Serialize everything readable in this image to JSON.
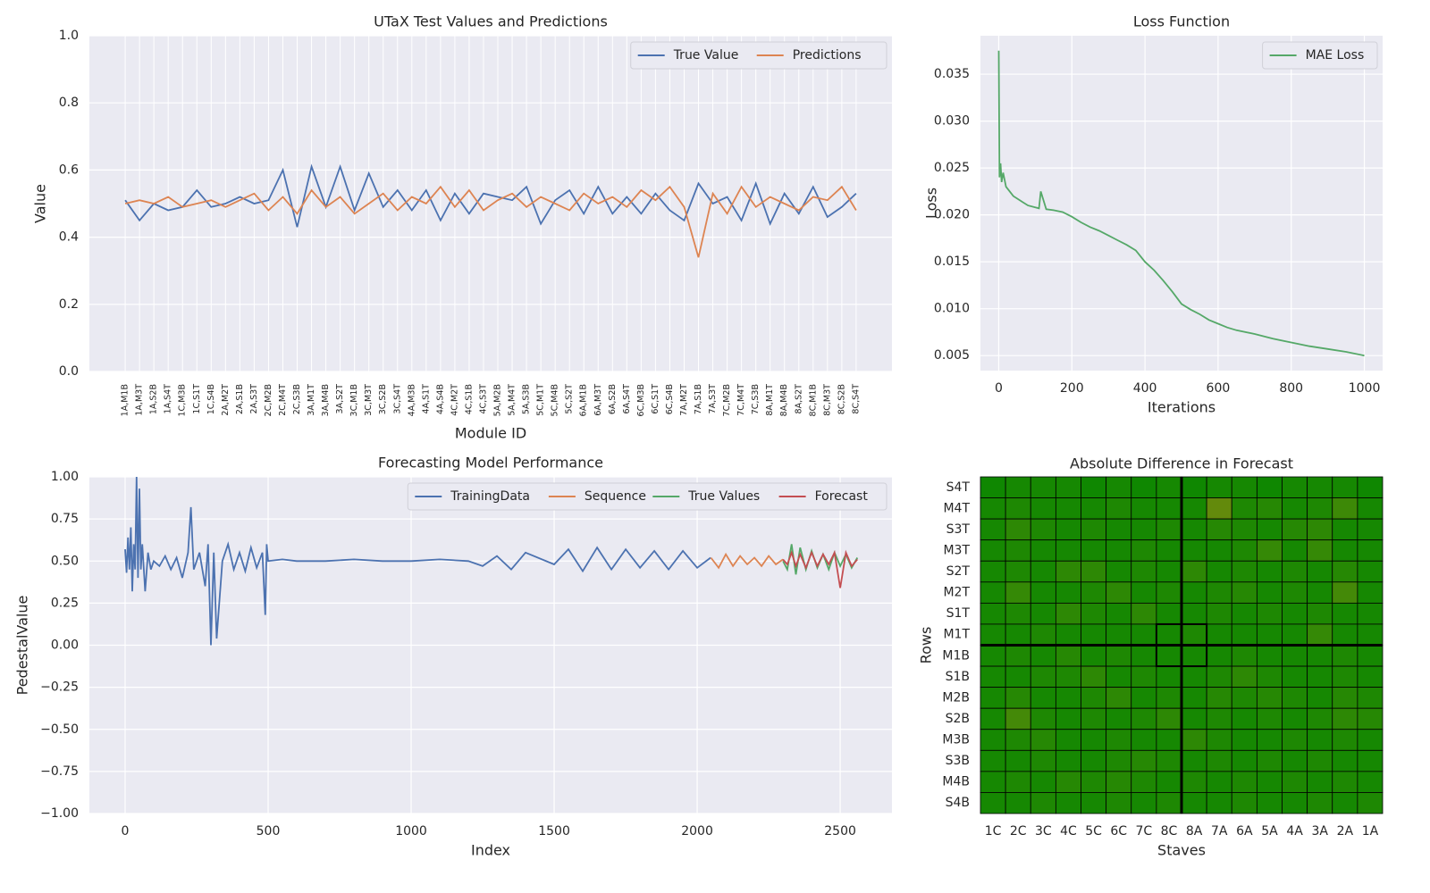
{
  "chart_data": [
    {
      "type": "line",
      "title": "UTaX Test Values and Predictions",
      "xlabel": "Module ID",
      "ylabel": "Value",
      "categories": [
        "1A,M1B",
        "1A,M3T",
        "1A,S2B",
        "1A,S4T",
        "1C,M3B",
        "1C,S1T",
        "1C,S4B",
        "2A,M2T",
        "2A,S1B",
        "2A,S3T",
        "2C,M2B",
        "2C,M4T",
        "2C,S3B",
        "3A,M1T",
        "3A,M4B",
        "3A,S2T",
        "3C,M1B",
        "3C,M3T",
        "3C,S2B",
        "3C,S4T",
        "4A,M3B",
        "4A,S1T",
        "4A,S4B",
        "4C,M2T",
        "4C,S1B",
        "4C,S3T",
        "5A,M2B",
        "5A,M4T",
        "5A,S3B",
        "5C,M1T",
        "5C,M4B",
        "5C,S2T",
        "6A,M1B",
        "6A,M3T",
        "6A,S2B",
        "6A,S4T",
        "6C,M3B",
        "6C,S1T",
        "6C,S4B",
        "7A,M2T",
        "7A,S1B",
        "7A,S3T",
        "7C,M2B",
        "7C,M4T",
        "7C,S3B",
        "8A,M1T",
        "8A,M4B",
        "8A,S2T",
        "8C,M1B",
        "8C,M3T",
        "8C,S2B",
        "8C,S4T"
      ],
      "series": [
        {
          "name": "True Value",
          "color": "#4c72b0",
          "values": [
            0.51,
            0.45,
            0.5,
            0.48,
            0.49,
            0.54,
            0.49,
            0.5,
            0.52,
            0.5,
            0.51,
            0.6,
            0.43,
            0.61,
            0.49,
            0.61,
            0.48,
            0.59,
            0.49,
            0.54,
            0.48,
            0.54,
            0.45,
            0.53,
            0.47,
            0.53,
            0.52,
            0.51,
            0.55,
            0.44,
            0.51,
            0.54,
            0.47,
            0.55,
            0.47,
            0.52,
            0.47,
            0.53,
            0.48,
            0.45,
            0.56,
            0.5,
            0.52,
            0.45,
            0.56,
            0.44,
            0.53,
            0.47,
            0.55,
            0.46,
            0.49,
            0.53
          ]
        },
        {
          "name": "Predictions",
          "color": "#dd8452",
          "values": [
            0.5,
            0.51,
            0.5,
            0.52,
            0.49,
            0.5,
            0.51,
            0.49,
            0.51,
            0.53,
            0.48,
            0.52,
            0.47,
            0.54,
            0.49,
            0.52,
            0.47,
            0.5,
            0.53,
            0.48,
            0.52,
            0.5,
            0.55,
            0.49,
            0.54,
            0.48,
            0.51,
            0.53,
            0.49,
            0.52,
            0.5,
            0.48,
            0.53,
            0.5,
            0.52,
            0.49,
            0.54,
            0.51,
            0.55,
            0.49,
            0.34,
            0.53,
            0.47,
            0.55,
            0.49,
            0.52,
            0.5,
            0.48,
            0.52,
            0.51,
            0.55,
            0.48
          ]
        }
      ],
      "ylim": [
        0,
        1
      ],
      "yticks": [
        {
          "value": 0,
          "label": "0.0"
        },
        0.2,
        0.4,
        0.6,
        0.8,
        {
          "value": 1,
          "label": "1.0"
        }
      ],
      "grid": true,
      "legend": "upper right",
      "legend_ncol": 2
    },
    {
      "type": "line",
      "title": "Loss Function",
      "xlabel": "Iterations",
      "ylabel": "Loss",
      "series": [
        {
          "name": "MAE Loss",
          "color": "#55a868",
          "x": [
            0,
            2,
            5,
            8,
            12,
            20,
            40,
            60,
            80,
            100,
            110,
            115,
            130,
            150,
            175,
            200,
            225,
            250,
            275,
            300,
            325,
            350,
            375,
            400,
            425,
            450,
            475,
            500,
            525,
            550,
            575,
            600,
            625,
            650,
            700,
            750,
            800,
            850,
            900,
            950,
            1000
          ],
          "values": [
            0.0375,
            0.024,
            0.0255,
            0.0235,
            0.0245,
            0.023,
            0.022,
            0.0215,
            0.021,
            0.0208,
            0.0207,
            0.0225,
            0.0206,
            0.0205,
            0.0203,
            0.0198,
            0.0192,
            0.0187,
            0.0183,
            0.0178,
            0.0173,
            0.0168,
            0.0162,
            0.015,
            0.0141,
            0.013,
            0.0118,
            0.0105,
            0.0099,
            0.0094,
            0.0088,
            0.0084,
            0.008,
            0.0077,
            0.0073,
            0.0068,
            0.0064,
            0.006,
            0.0057,
            0.0054,
            0.005
          ]
        }
      ],
      "xlim": [
        -50,
        1050
      ],
      "xticks": [
        0,
        200,
        400,
        600,
        800,
        1000
      ],
      "ylim": [
        0.0034,
        0.0391
      ],
      "yticks": [
        0.005,
        {
          "value": 0.01,
          "label": "0.010"
        },
        0.015,
        {
          "value": 0.02,
          "label": "0.020"
        },
        0.025,
        {
          "value": 0.03,
          "label": "0.030"
        },
        0.035
      ],
      "grid": true,
      "legend": "upper right",
      "legend_ncol": 1
    },
    {
      "type": "line",
      "title": "Forecasting Model Performance",
      "xlabel": "Index",
      "ylabel": "PedestalValue",
      "series": [
        {
          "name": "TrainingData",
          "color": "#4c72b0",
          "x": [
            0,
            5,
            10,
            15,
            20,
            25,
            30,
            35,
            40,
            45,
            50,
            55,
            60,
            70,
            80,
            90,
            100,
            120,
            140,
            160,
            180,
            200,
            220,
            230,
            240,
            260,
            280,
            290,
            300,
            310,
            320,
            340,
            360,
            380,
            400,
            420,
            440,
            460,
            480,
            490,
            495,
            500,
            550,
            600,
            700,
            800,
            900,
            1000,
            1100,
            1200,
            1250,
            1300,
            1350,
            1400,
            1500,
            1550,
            1600,
            1650,
            1700,
            1750,
            1800,
            1850,
            1900,
            1950,
            2000,
            2047
          ],
          "values": [
            0.57,
            0.43,
            0.64,
            0.45,
            0.7,
            0.32,
            0.6,
            0.45,
            1.0,
            0.4,
            0.93,
            0.45,
            0.6,
            0.32,
            0.55,
            0.45,
            0.5,
            0.47,
            0.53,
            0.45,
            0.52,
            0.4,
            0.55,
            0.82,
            0.45,
            0.55,
            0.35,
            0.6,
            0.0,
            0.55,
            0.04,
            0.5,
            0.6,
            0.45,
            0.55,
            0.44,
            0.58,
            0.46,
            0.55,
            0.18,
            0.6,
            0.5,
            0.51,
            0.5,
            0.5,
            0.51,
            0.5,
            0.5,
            0.51,
            0.5,
            0.47,
            0.53,
            0.45,
            0.55,
            0.48,
            0.57,
            0.44,
            0.58,
            0.45,
            0.57,
            0.46,
            0.56,
            0.45,
            0.56,
            0.46,
            0.52
          ]
        },
        {
          "name": "Sequence",
          "color": "#dd8452",
          "x": [
            2048,
            2075,
            2100,
            2125,
            2150,
            2175,
            2200,
            2225,
            2250,
            2275,
            2300
          ],
          "values": [
            0.52,
            0.46,
            0.54,
            0.47,
            0.53,
            0.48,
            0.52,
            0.47,
            0.53,
            0.48,
            0.51
          ]
        },
        {
          "name": "True Values",
          "color": "#55a868",
          "x": [
            2300,
            2315,
            2330,
            2345,
            2360,
            2380,
            2400,
            2420,
            2440,
            2460,
            2480,
            2500,
            2520,
            2540,
            2560
          ],
          "values": [
            0.5,
            0.45,
            0.6,
            0.42,
            0.58,
            0.45,
            0.56,
            0.46,
            0.54,
            0.45,
            0.55,
            0.47,
            0.54,
            0.46,
            0.52
          ]
        },
        {
          "name": "Forecast",
          "color": "#c44e52",
          "x": [
            2300,
            2315,
            2330,
            2345,
            2360,
            2380,
            2400,
            2420,
            2440,
            2460,
            2480,
            2500,
            2520,
            2540,
            2560
          ],
          "values": [
            0.51,
            0.48,
            0.55,
            0.47,
            0.54,
            0.46,
            0.55,
            0.47,
            0.54,
            0.48,
            0.55,
            0.34,
            0.55,
            0.47,
            0.51
          ]
        }
      ],
      "xlim": [
        -125,
        2681
      ],
      "xticks": [
        0,
        500,
        1000,
        1500,
        2000,
        2500
      ],
      "ylim": [
        -1,
        1
      ],
      "yticks": [
        {
          "value": -1,
          "label": "−1.00"
        },
        {
          "value": -0.75,
          "label": "−0.75"
        },
        {
          "value": -0.5,
          "label": "−0.50"
        },
        {
          "value": -0.25,
          "label": "−0.25"
        },
        {
          "value": 0,
          "label": "0.00"
        },
        {
          "value": 0.25,
          "label": "0.25"
        },
        {
          "value": 0.5,
          "label": "0.50"
        },
        {
          "value": 0.75,
          "label": "0.75"
        },
        {
          "value": 1,
          "label": "1.00"
        }
      ],
      "grid": true,
      "legend": "upper right",
      "legend_ncol": 4
    },
    {
      "type": "heatmap",
      "title": "Absolute Difference in Forecast",
      "xlabel": "Staves",
      "ylabel": "Rows",
      "columns": [
        "1C",
        "2C",
        "3C",
        "4C",
        "5C",
        "6C",
        "7C",
        "8C",
        "8A",
        "7A",
        "6A",
        "5A",
        "4A",
        "3A",
        "2A",
        "1A"
      ],
      "rows": [
        "S4T",
        "M4T",
        "S3T",
        "M3T",
        "S2T",
        "M2T",
        "S1T",
        "M1T",
        "M1B",
        "S1B",
        "M2B",
        "S2B",
        "M3B",
        "S3B",
        "M4B",
        "S4B"
      ],
      "z": [
        [
          0.05,
          0.1,
          0.1,
          0.1,
          0.05,
          0.1,
          0.05,
          0.1,
          0.05,
          0.1,
          0.1,
          0.05,
          0.1,
          0.1,
          0.1,
          0.05
        ],
        [
          0.1,
          0.15,
          0.1,
          0.1,
          0.1,
          0.15,
          0.1,
          0.1,
          0.1,
          0.6,
          0.15,
          0.2,
          0.1,
          0.15,
          0.35,
          0.1
        ],
        [
          0.1,
          0.25,
          0.15,
          0.1,
          0.15,
          0.1,
          0.1,
          0.15,
          0.1,
          0.2,
          0.15,
          0.1,
          0.2,
          0.25,
          0.1,
          0.1
        ],
        [
          0.1,
          0.15,
          0.1,
          0.1,
          0.1,
          0.1,
          0.15,
          0.1,
          0.1,
          0.1,
          0.15,
          0.3,
          0.1,
          0.3,
          0.1,
          0.1
        ],
        [
          0.1,
          0.15,
          0.1,
          0.25,
          0.25,
          0.1,
          0.15,
          0.1,
          0.25,
          0.1,
          0.15,
          0.1,
          0.15,
          0.1,
          0.2,
          0.1
        ],
        [
          0.1,
          0.3,
          0.1,
          0.1,
          0.15,
          0.25,
          0.1,
          0.15,
          0.1,
          0.15,
          0.2,
          0.1,
          0.15,
          0.1,
          0.4,
          0.1
        ],
        [
          0.1,
          0.15,
          0.1,
          0.25,
          0.15,
          0.1,
          0.25,
          0.1,
          0.1,
          0.15,
          0.1,
          0.15,
          0.1,
          0.15,
          0.1,
          0.1
        ],
        [
          0.1,
          0.1,
          0.15,
          0.1,
          0.1,
          0.1,
          0.1,
          0.1,
          0.15,
          0.1,
          0.1,
          0.1,
          0.1,
          0.3,
          0.1,
          0.1
        ],
        [
          0.1,
          0.15,
          0.1,
          0.2,
          0.1,
          0.15,
          0.1,
          0.1,
          0.1,
          0.1,
          0.15,
          0.1,
          0.1,
          0.1,
          0.15,
          0.1
        ],
        [
          0.1,
          0.1,
          0.15,
          0.15,
          0.25,
          0.1,
          0.15,
          0.1,
          0.1,
          0.15,
          0.25,
          0.15,
          0.1,
          0.1,
          0.15,
          0.1
        ],
        [
          0.1,
          0.2,
          0.1,
          0.1,
          0.15,
          0.25,
          0.1,
          0.15,
          0.1,
          0.2,
          0.15,
          0.2,
          0.15,
          0.1,
          0.2,
          0.15
        ],
        [
          0.1,
          0.4,
          0.15,
          0.1,
          0.15,
          0.1,
          0.15,
          0.25,
          0.1,
          0.15,
          0.1,
          0.15,
          0.1,
          0.15,
          0.25,
          0.2
        ],
        [
          0.1,
          0.15,
          0.2,
          0.1,
          0.1,
          0.15,
          0.1,
          0.1,
          0.25,
          0.15,
          0.1,
          0.1,
          0.15,
          0.1,
          0.15,
          0.1
        ],
        [
          0.1,
          0.1,
          0.15,
          0.1,
          0.1,
          0.15,
          0.2,
          0.15,
          0.1,
          0.15,
          0.1,
          0.15,
          0.1,
          0.15,
          0.1,
          0.1
        ],
        [
          0.1,
          0.15,
          0.1,
          0.2,
          0.15,
          0.2,
          0.15,
          0.1,
          0.15,
          0.1,
          0.15,
          0.1,
          0.15,
          0.1,
          0.15,
          0.1
        ],
        [
          0.1,
          0.1,
          0.15,
          0.1,
          0.1,
          0.15,
          0.1,
          0.15,
          0.1,
          0.1,
          0.15,
          0.1,
          0.1,
          0.15,
          0.1,
          0.15
        ]
      ],
      "zlim": [
        0,
        1
      ],
      "colormap": [
        "#078700",
        "#a08c14"
      ]
    }
  ]
}
